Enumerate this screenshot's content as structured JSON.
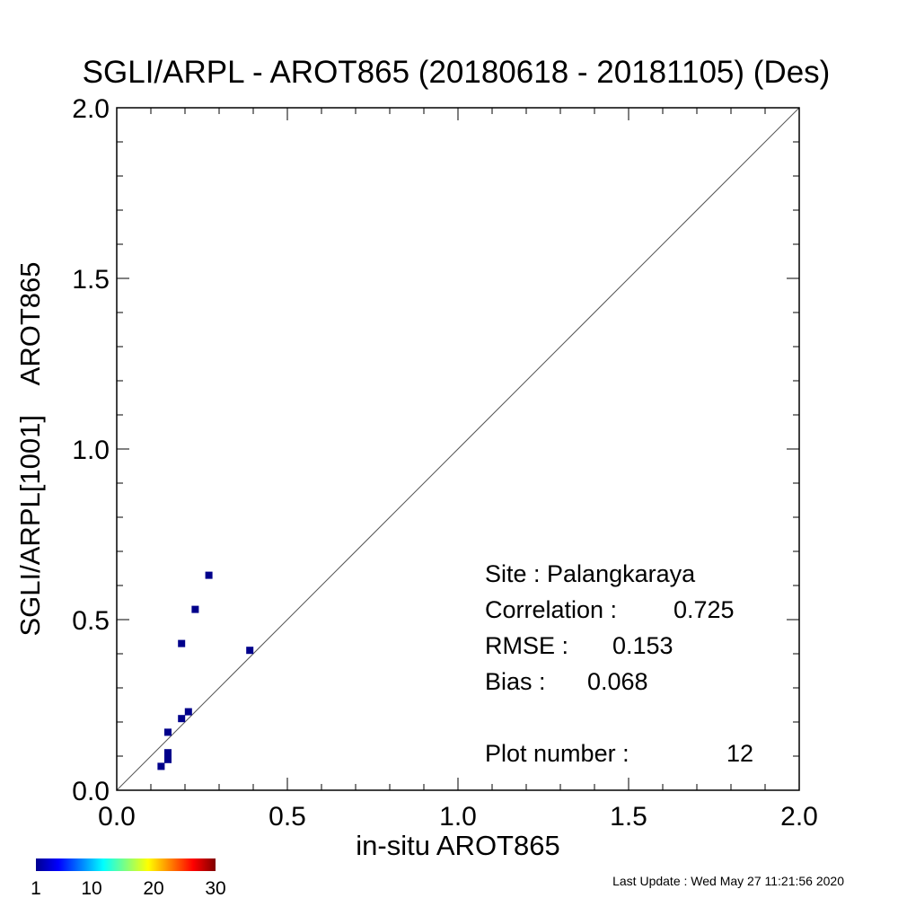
{
  "chart_data": {
    "type": "scatter",
    "title": "SGLI/ARPL - AROT865 (20180618 - 20181105) (Des)",
    "xlabel": "in-situ AROT865",
    "ylabel": "SGLI/ARPL[1001]    AROT865",
    "xlim": [
      0.0,
      2.0
    ],
    "ylim": [
      0.0,
      2.0
    ],
    "x_ticks": [
      "0.0",
      "0.5",
      "1.0",
      "1.5",
      "2.0"
    ],
    "y_ticks": [
      "0.0",
      "0.5",
      "1.0",
      "1.5",
      "2.0"
    ],
    "reference_line": "1:1",
    "point_color": "#00008B",
    "points": [
      {
        "x": 0.13,
        "y": 0.07
      },
      {
        "x": 0.15,
        "y": 0.09
      },
      {
        "x": 0.15,
        "y": 0.1
      },
      {
        "x": 0.15,
        "y": 0.11
      },
      {
        "x": 0.15,
        "y": 0.17
      },
      {
        "x": 0.19,
        "y": 0.21
      },
      {
        "x": 0.21,
        "y": 0.23
      },
      {
        "x": 0.19,
        "y": 0.43
      },
      {
        "x": 0.23,
        "y": 0.53
      },
      {
        "x": 0.27,
        "y": 0.63
      },
      {
        "x": 0.39,
        "y": 0.41
      },
      {
        "x": 0.15,
        "y": 0.1
      }
    ],
    "stats": {
      "site": "Site : Palangkaraya",
      "correlation_label": "Correlation :",
      "correlation_value": "0.725",
      "rmse_label": "RMSE :",
      "rmse_value": "0.153",
      "bias_label": "Bias :",
      "bias_value": "0.068",
      "plot_number_label": "Plot number :",
      "plot_number_value": "12"
    },
    "colorbar": {
      "tick_labels": [
        "1",
        "10",
        "20",
        "30"
      ],
      "range": [
        1,
        30
      ],
      "colormap": "jet"
    },
    "footer": "Last Update : Wed May 27 11:21:56 2020"
  }
}
